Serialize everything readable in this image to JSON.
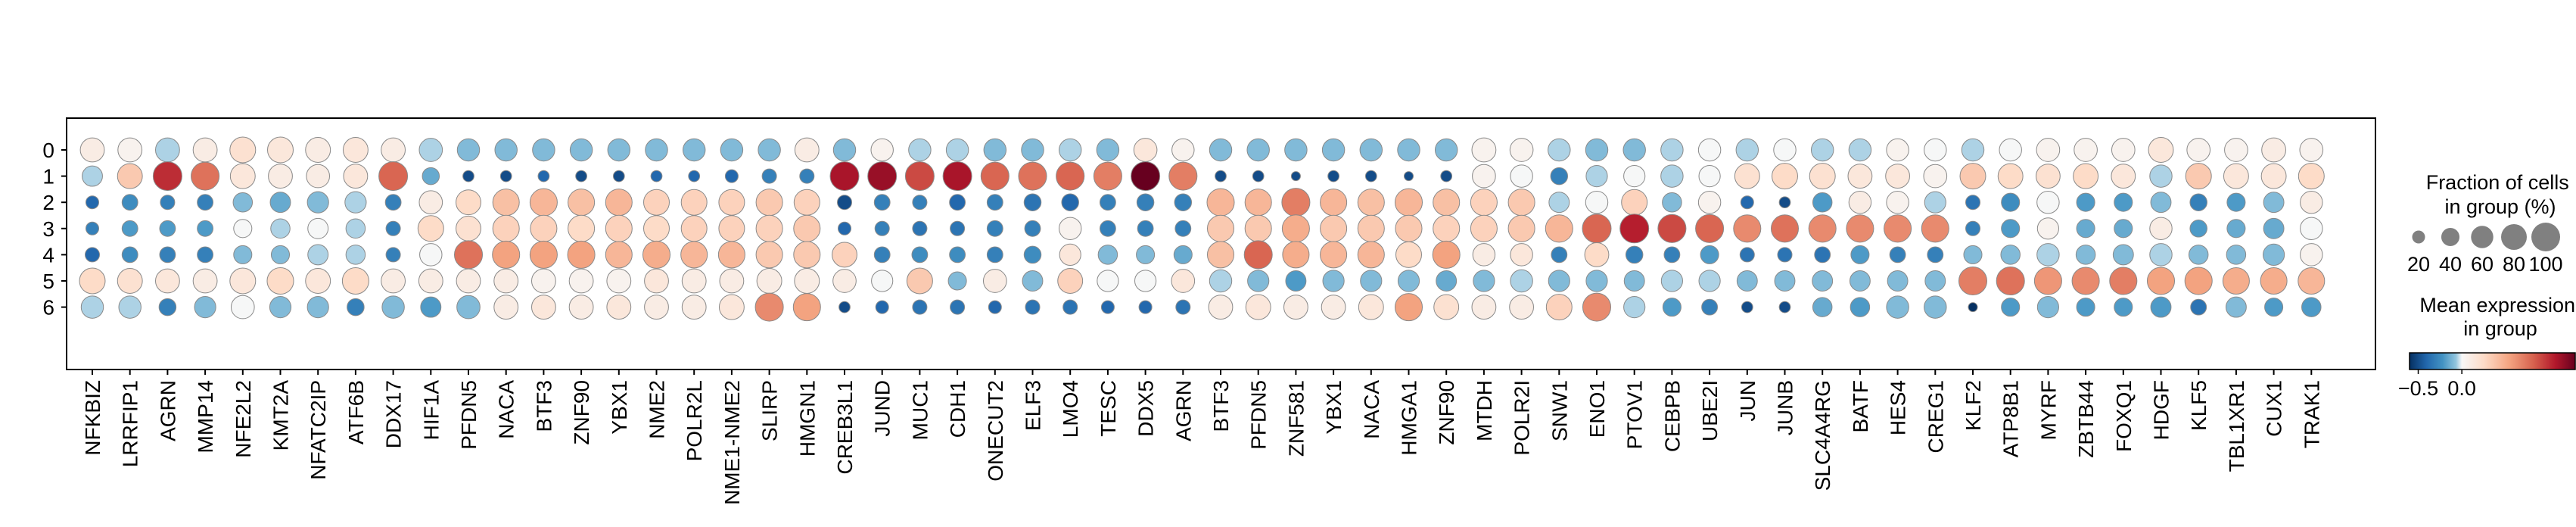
{
  "chart_data": {
    "type": "dotplot",
    "rows": [
      "0",
      "1",
      "2",
      "3",
      "4",
      "5",
      "6"
    ],
    "genes": [
      "NFKBIZ",
      "LRRFIP1",
      "AGRN",
      "MMP14",
      "NFE2L2",
      "KMT2A",
      "NFATC2IP",
      "ATF6B",
      "DDX17",
      "HIF1A",
      "PFDN5",
      "NACA",
      "BTF3",
      "ZNF90",
      "YBX1",
      "NME2",
      "POLR2L",
      "NME1-NME2",
      "SLIRP",
      "HMGN1",
      "CREB3L1",
      "JUND",
      "MUC1",
      "CDH1",
      "ONECUT2",
      "ELF3",
      "LMO4",
      "TESC",
      "DDX5",
      "AGRN",
      "BTF3",
      "PFDN5",
      "ZNF581",
      "YBX1",
      "NACA",
      "HMGA1",
      "ZNF90",
      "MTDH",
      "POLR2I",
      "SNW1",
      "ENO1",
      "PTOV1",
      "CEBPB",
      "UBE2I",
      "JUN",
      "JUNB",
      "SLC4A4RG",
      "BATF",
      "HES4",
      "CREG1",
      "KLF2",
      "ATP8B1",
      "MYRF",
      "ZBTB44",
      "FOXQ1",
      "HDGF",
      "KLF5",
      "TBL1XR1",
      "CUX1",
      "TRAK1"
    ],
    "mean_expression": [
      [
        0.1,
        0.05,
        -0.05,
        0.1,
        0.2,
        0.15,
        0.1,
        0.15,
        0.1,
        -0.05,
        -0.1,
        -0.1,
        -0.1,
        -0.1,
        -0.1,
        -0.1,
        -0.1,
        -0.1,
        -0.1,
        0.1,
        -0.1,
        0.05,
        -0.05,
        -0.05,
        -0.1,
        -0.1,
        -0.05,
        -0.1,
        0.15,
        0.05,
        -0.1,
        -0.1,
        -0.1,
        -0.1,
        -0.1,
        -0.1,
        -0.1,
        0.05,
        0.05,
        -0.05,
        -0.1,
        -0.1,
        -0.05,
        0.0,
        -0.05,
        0.0,
        -0.05,
        -0.05,
        0.05,
        0.0,
        -0.05,
        0.0,
        0.05,
        0.05,
        0.05,
        0.15,
        0.05,
        0.05,
        0.1,
        0.05
      ],
      [
        -0.05,
        0.35,
        1.0,
        0.75,
        0.15,
        0.1,
        0.1,
        0.15,
        0.8,
        -0.15,
        -0.5,
        -0.5,
        -0.4,
        -0.5,
        -0.5,
        -0.4,
        -0.4,
        -0.4,
        -0.3,
        -0.3,
        1.1,
        1.15,
        0.9,
        1.1,
        0.8,
        0.75,
        0.8,
        0.7,
        1.3,
        0.7,
        -0.5,
        -0.5,
        -0.5,
        -0.5,
        -0.5,
        -0.5,
        -0.5,
        0.05,
        0.0,
        -0.3,
        -0.05,
        0.0,
        -0.05,
        0.0,
        0.2,
        0.25,
        0.2,
        0.15,
        0.15,
        0.05,
        0.35,
        0.25,
        0.2,
        0.25,
        0.15,
        -0.05,
        0.35,
        0.15,
        0.15,
        0.25
      ],
      [
        -0.4,
        -0.25,
        -0.3,
        -0.3,
        -0.1,
        -0.15,
        -0.1,
        -0.05,
        -0.3,
        0.1,
        0.25,
        0.4,
        0.45,
        0.4,
        0.45,
        0.3,
        0.3,
        0.3,
        0.35,
        0.3,
        -0.5,
        -0.3,
        -0.3,
        -0.4,
        -0.3,
        -0.35,
        -0.4,
        -0.3,
        -0.3,
        -0.3,
        0.45,
        0.45,
        0.7,
        0.45,
        0.4,
        0.45,
        0.4,
        0.3,
        0.35,
        -0.05,
        0.0,
        0.3,
        -0.1,
        0.05,
        -0.4,
        -0.5,
        -0.2,
        0.1,
        0.05,
        -0.05,
        -0.35,
        -0.25,
        0.0,
        -0.2,
        -0.2,
        -0.1,
        -0.3,
        -0.2,
        -0.1,
        0.1
      ],
      [
        -0.3,
        -0.2,
        -0.2,
        -0.2,
        0.0,
        -0.05,
        0.0,
        -0.05,
        -0.3,
        0.25,
        0.2,
        0.3,
        0.3,
        0.25,
        0.3,
        0.25,
        0.3,
        0.3,
        0.3,
        0.35,
        -0.4,
        -0.3,
        -0.35,
        -0.35,
        -0.3,
        -0.3,
        0.05,
        -0.3,
        -0.3,
        -0.3,
        0.35,
        0.35,
        0.5,
        0.35,
        0.35,
        0.35,
        0.3,
        0.3,
        0.35,
        0.45,
        0.8,
        1.05,
        0.9,
        0.8,
        0.65,
        0.75,
        0.65,
        0.65,
        0.65,
        0.65,
        -0.3,
        -0.2,
        0.05,
        -0.15,
        -0.15,
        0.1,
        -0.2,
        -0.15,
        -0.15,
        0.0
      ],
      [
        -0.4,
        -0.25,
        -0.3,
        -0.3,
        -0.1,
        -0.1,
        -0.05,
        -0.05,
        -0.3,
        0.0,
        0.75,
        0.55,
        0.55,
        0.55,
        0.45,
        0.5,
        0.45,
        0.45,
        0.35,
        0.35,
        0.3,
        -0.3,
        -0.25,
        -0.25,
        -0.3,
        -0.25,
        0.15,
        -0.1,
        -0.1,
        -0.15,
        0.4,
        0.8,
        0.5,
        0.45,
        0.45,
        0.25,
        0.55,
        0.1,
        0.15,
        -0.3,
        0.25,
        -0.3,
        -0.3,
        -0.2,
        -0.35,
        -0.35,
        -0.35,
        -0.2,
        -0.3,
        -0.3,
        -0.1,
        -0.1,
        -0.05,
        -0.1,
        -0.1,
        -0.05,
        -0.1,
        -0.1,
        -0.1,
        0.05
      ],
      [
        0.25,
        0.2,
        0.15,
        0.1,
        0.15,
        0.25,
        0.15,
        0.25,
        0.1,
        0.1,
        0.1,
        0.1,
        0.05,
        0.05,
        0.05,
        0.15,
        0.1,
        0.1,
        0.1,
        0.1,
        0.1,
        0.0,
        0.35,
        -0.1,
        0.1,
        -0.1,
        0.3,
        0.0,
        0.0,
        0.15,
        -0.05,
        -0.1,
        -0.2,
        -0.1,
        -0.1,
        -0.1,
        -0.15,
        -0.1,
        -0.05,
        -0.1,
        -0.1,
        -0.1,
        -0.05,
        -0.05,
        -0.1,
        -0.1,
        -0.1,
        -0.1,
        -0.1,
        -0.1,
        0.7,
        0.75,
        0.6,
        0.65,
        0.7,
        0.55,
        0.55,
        0.5,
        0.5,
        0.45
      ],
      [
        -0.05,
        -0.05,
        -0.3,
        -0.1,
        0.0,
        -0.1,
        -0.1,
        -0.3,
        -0.1,
        -0.2,
        -0.1,
        0.1,
        0.15,
        0.1,
        0.15,
        0.1,
        0.1,
        0.15,
        0.65,
        0.55,
        -0.5,
        -0.4,
        -0.35,
        -0.35,
        -0.4,
        -0.35,
        -0.35,
        -0.4,
        -0.4,
        -0.35,
        0.1,
        0.15,
        0.1,
        0.1,
        0.15,
        0.55,
        0.2,
        0.1,
        0.1,
        0.3,
        0.65,
        -0.05,
        -0.2,
        -0.3,
        -0.5,
        -0.5,
        -0.15,
        -0.2,
        -0.1,
        -0.1,
        -0.6,
        -0.2,
        -0.1,
        -0.2,
        -0.2,
        -0.2,
        -0.35,
        -0.1,
        -0.2,
        -0.2
      ]
    ],
    "fraction_pct": [
      [
        70,
        70,
        70,
        70,
        80,
        80,
        75,
        75,
        70,
        65,
        60,
        60,
        60,
        60,
        60,
        60,
        60,
        60,
        60,
        70,
        60,
        60,
        60,
        60,
        60,
        60,
        60,
        60,
        65,
        60,
        60,
        60,
        60,
        60,
        60,
        60,
        60,
        70,
        65,
        60,
        60,
        60,
        60,
        60,
        60,
        60,
        60,
        60,
        60,
        60,
        60,
        60,
        65,
        65,
        65,
        75,
        65,
        65,
        70,
        65
      ],
      [
        50,
        75,
        100,
        95,
        75,
        70,
        65,
        70,
        100,
        35,
        15,
        15,
        15,
        15,
        15,
        15,
        15,
        20,
        25,
        25,
        100,
        100,
        100,
        100,
        95,
        95,
        95,
        95,
        100,
        95,
        15,
        15,
        10,
        15,
        15,
        10,
        15,
        65,
        60,
        35,
        55,
        55,
        60,
        55,
        75,
        80,
        80,
        70,
        70,
        65,
        80,
        75,
        70,
        75,
        70,
        60,
        80,
        75,
        75,
        80
      ],
      [
        20,
        30,
        25,
        30,
        45,
        50,
        55,
        55,
        30,
        65,
        75,
        85,
        90,
        85,
        85,
        80,
        80,
        80,
        85,
        80,
        25,
        30,
        25,
        30,
        30,
        35,
        35,
        30,
        35,
        35,
        90,
        85,
        95,
        85,
        85,
        90,
        85,
        85,
        85,
        50,
        60,
        80,
        45,
        60,
        20,
        15,
        45,
        60,
        60,
        55,
        25,
        40,
        60,
        40,
        40,
        50,
        35,
        40,
        50,
        60
      ],
      [
        20,
        30,
        30,
        30,
        40,
        45,
        50,
        45,
        25,
        80,
        75,
        85,
        85,
        85,
        85,
        80,
        80,
        80,
        85,
        85,
        20,
        25,
        25,
        25,
        30,
        30,
        60,
        30,
        30,
        30,
        85,
        85,
        90,
        85,
        85,
        85,
        85,
        85,
        85,
        90,
        100,
        100,
        95,
        95,
        90,
        90,
        90,
        90,
        90,
        90,
        25,
        40,
        55,
        40,
        40,
        60,
        35,
        40,
        50,
        60
      ],
      [
        25,
        30,
        30,
        30,
        40,
        40,
        50,
        45,
        25,
        60,
        95,
        90,
        90,
        90,
        85,
        90,
        85,
        85,
        85,
        85,
        75,
        30,
        30,
        30,
        30,
        35,
        55,
        45,
        40,
        40,
        85,
        95,
        85,
        85,
        85,
        80,
        90,
        60,
        60,
        30,
        70,
        35,
        30,
        40,
        25,
        25,
        30,
        40,
        30,
        30,
        40,
        45,
        60,
        45,
        50,
        60,
        45,
        45,
        55,
        60
      ],
      [
        80,
        75,
        70,
        70,
        80,
        85,
        75,
        85,
        70,
        70,
        70,
        70,
        70,
        70,
        70,
        70,
        70,
        70,
        75,
        75,
        65,
        55,
        80,
        40,
        65,
        50,
        75,
        55,
        55,
        65,
        60,
        55,
        50,
        55,
        55,
        55,
        50,
        55,
        60,
        55,
        55,
        50,
        55,
        55,
        50,
        50,
        50,
        50,
        50,
        50,
        95,
        95,
        90,
        90,
        90,
        90,
        90,
        85,
        85,
        85
      ],
      [
        60,
        60,
        35,
        55,
        65,
        55,
        55,
        35,
        60,
        50,
        65,
        70,
        70,
        70,
        70,
        70,
        70,
        75,
        95,
        90,
        15,
        20,
        25,
        25,
        20,
        25,
        25,
        20,
        20,
        25,
        70,
        75,
        70,
        70,
        75,
        90,
        75,
        70,
        70,
        80,
        95,
        55,
        40,
        30,
        15,
        15,
        45,
        45,
        60,
        60,
        10,
        40,
        55,
        40,
        40,
        50,
        30,
        50,
        40,
        45
      ]
    ],
    "size_legend": {
      "title": "Fraction of cells\nin group (%)",
      "values": [
        20,
        40,
        60,
        80,
        100
      ]
    },
    "color_legend": {
      "title": "Mean expression\nin group",
      "ticks": [
        -0.5,
        0.0
      ],
      "tick_labels": [
        "−0.5",
        "0.0"
      ],
      "range": [
        -0.6,
        1.3
      ],
      "colormap": "RdBu_r"
    }
  }
}
